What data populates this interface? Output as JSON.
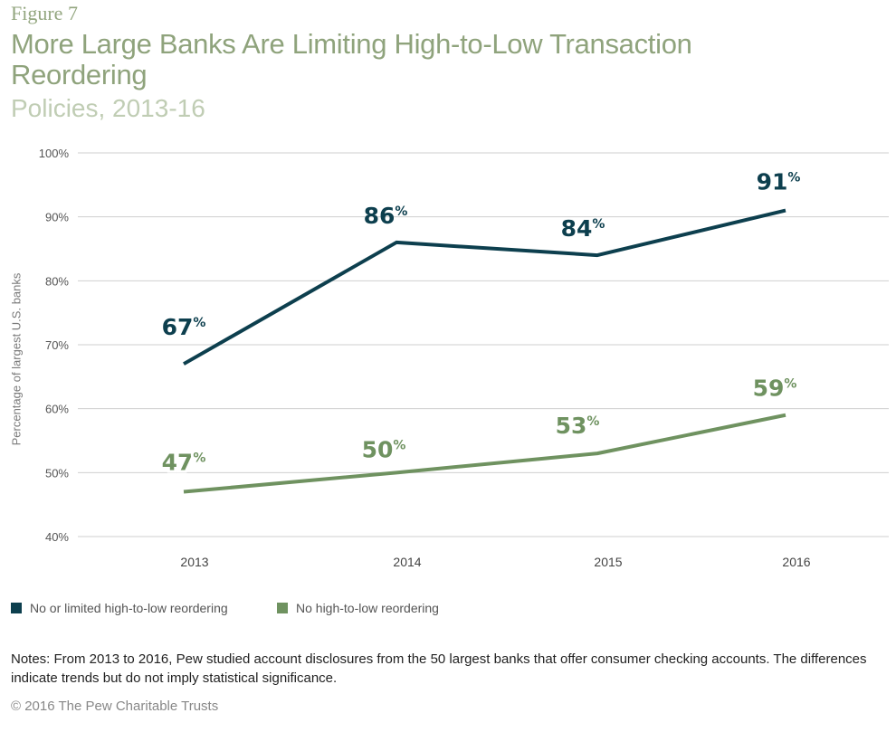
{
  "figure_label": "Figure 7",
  "notes": "Notes: From 2013 to 2016, Pew studied account disclosures from the 50 largest banks that offer consumer checking accounts. The differences indicate trends but do not imply statistical significance.",
  "copyright": "© 2016 The Pew Charitable Trusts",
  "colors": {
    "series1": "#0d3f4e",
    "series2": "#6f9260",
    "grid": "#cfcfcf",
    "title": "#8fa37c"
  },
  "chart_data": {
    "type": "line",
    "title": "More Large Banks Are Limiting High-to-Low Transaction Reordering",
    "subtitle": "Policies, 2013-16",
    "xlabel": "",
    "ylabel": "Percentage of largest U.S. banks",
    "x": [
      "2013",
      "2014",
      "2015",
      "2016"
    ],
    "ylim": [
      40,
      100
    ],
    "yticks": [
      40,
      50,
      60,
      70,
      80,
      90,
      100
    ],
    "ytick_labels": [
      "40%",
      "50%",
      "60%",
      "70%",
      "80%",
      "90%",
      "100%"
    ],
    "grid": true,
    "legend_position": "bottom-left",
    "series": [
      {
        "name": "No or limited high-to-low reordering",
        "values": [
          67,
          86,
          84,
          91
        ],
        "labels": [
          "67",
          "86",
          "84",
          "91"
        ]
      },
      {
        "name": "No high-to-low reordering",
        "values": [
          47,
          50,
          53,
          59
        ],
        "labels": [
          "47",
          "50",
          "53",
          "59"
        ]
      }
    ],
    "label_suffix": "%"
  }
}
